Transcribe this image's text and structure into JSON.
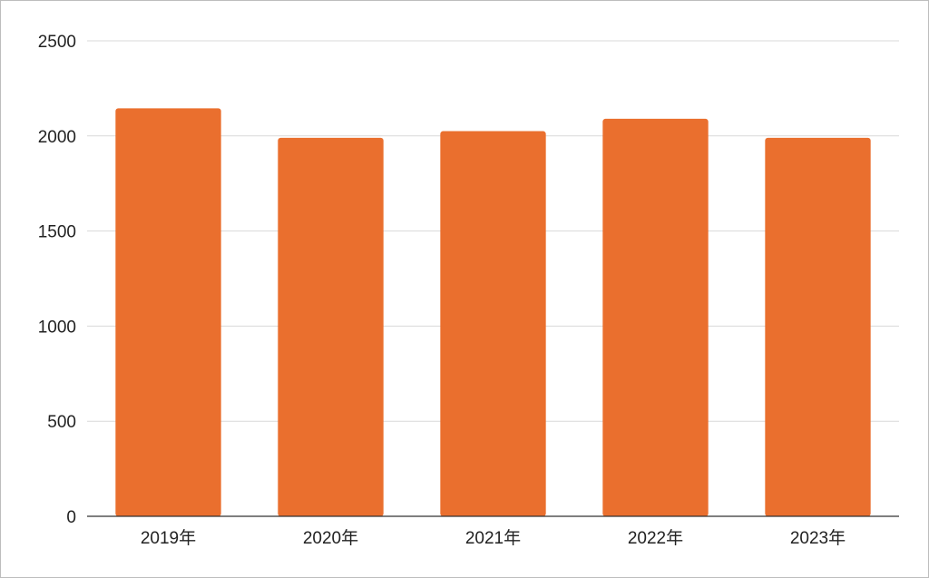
{
  "chart_data": {
    "type": "bar",
    "title": "",
    "xlabel": "",
    "ylabel": "",
    "categories": [
      "2019年",
      "2020年",
      "2021年",
      "2022年",
      "2023年"
    ],
    "values": [
      2145,
      1990,
      2025,
      2090,
      1990
    ],
    "ylim": [
      0,
      2500
    ],
    "yticks": [
      "0",
      "500",
      "1000",
      "1500",
      "2000",
      "2500"
    ],
    "grid": true,
    "legend": "none",
    "colors": {
      "bar": "#EA6F2E",
      "grid": "#d9d9d9",
      "axis": "#333333"
    }
  }
}
